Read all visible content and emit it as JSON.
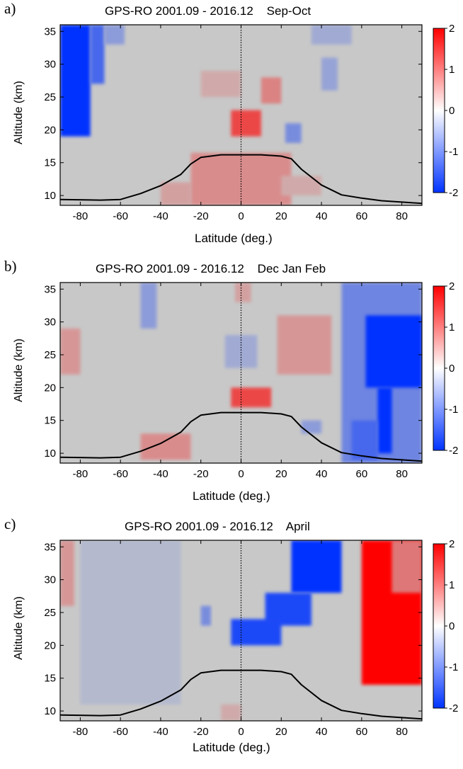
{
  "chart_data": [
    {
      "type": "heatmap",
      "panel_label": "a)",
      "title": "GPS-RO 2001.09 - 2016.12    Sep-Oct",
      "xlabel": "Latitude (deg.)",
      "ylabel": "Altitude (km)",
      "xlim": [
        -90,
        90
      ],
      "ylim": [
        8.5,
        36
      ],
      "xticks": [
        -80,
        -60,
        -40,
        -20,
        0,
        20,
        40,
        60,
        80
      ],
      "yticks": [
        10,
        15,
        20,
        25,
        30,
        35
      ],
      "colorbar": {
        "range": [
          -2,
          2
        ],
        "ticks": [
          2,
          1,
          0,
          -1,
          -2
        ],
        "low_color": "#0033ff",
        "mid_color": "#ffffff",
        "high_color": "#ff0000"
      },
      "background_value": 0,
      "anomalies": [
        {
          "lat": [
            -90,
            -75
          ],
          "alt": [
            19,
            36
          ],
          "value": -2
        },
        {
          "lat": [
            -75,
            -68
          ],
          "alt": [
            27,
            36
          ],
          "value": -1.3
        },
        {
          "lat": [
            -68,
            -58
          ],
          "alt": [
            33,
            36
          ],
          "value": -0.6
        },
        {
          "lat": [
            -40,
            -25
          ],
          "alt": [
            8.5,
            12
          ],
          "value": 0.4
        },
        {
          "lat": [
            -25,
            25
          ],
          "alt": [
            8.5,
            16.5
          ],
          "value": 0.6
        },
        {
          "lat": [
            -5,
            10
          ],
          "alt": [
            19,
            23
          ],
          "value": 1.3
        },
        {
          "lat": [
            10,
            20
          ],
          "alt": [
            24,
            28
          ],
          "value": 0.7
        },
        {
          "lat": [
            -20,
            0
          ],
          "alt": [
            25,
            29
          ],
          "value": 0.3
        },
        {
          "lat": [
            22,
            30
          ],
          "alt": [
            18,
            21
          ],
          "value": -0.8
        },
        {
          "lat": [
            40,
            48
          ],
          "alt": [
            26,
            31
          ],
          "value": -0.5
        },
        {
          "lat": [
            35,
            55
          ],
          "alt": [
            33,
            36
          ],
          "value": -0.4
        },
        {
          "lat": [
            20,
            40
          ],
          "alt": [
            10,
            13
          ],
          "value": 0.3
        }
      ],
      "tropopause": {
        "lat": [
          -90,
          -70,
          -60,
          -50,
          -40,
          -30,
          -25,
          -20,
          -10,
          0,
          10,
          20,
          25,
          30,
          40,
          50,
          60,
          70,
          80,
          90
        ],
        "alt": [
          9.4,
          9.3,
          9.4,
          10.3,
          11.5,
          13.2,
          14.8,
          15.8,
          16.2,
          16.2,
          16.2,
          16.0,
          15.6,
          14.0,
          11.6,
          10.1,
          9.6,
          9.2,
          9.0,
          8.8
        ]
      }
    },
    {
      "type": "heatmap",
      "panel_label": "b)",
      "title": "GPS-RO 2001.09 - 2016.12    Dec Jan Feb",
      "xlabel": "Latitude (deg.)",
      "ylabel": "Altitude (km)",
      "xlim": [
        -90,
        90
      ],
      "ylim": [
        8.5,
        36
      ],
      "xticks": [
        -80,
        -60,
        -40,
        -20,
        0,
        20,
        40,
        60,
        80
      ],
      "yticks": [
        10,
        15,
        20,
        25,
        30,
        35
      ],
      "colorbar": {
        "range": [
          -2,
          2
        ],
        "ticks": [
          2,
          1,
          0,
          -1,
          -2
        ],
        "low_color": "#0033ff",
        "mid_color": "#ffffff",
        "high_color": "#ff0000"
      },
      "background_value": 0,
      "anomalies": [
        {
          "lat": [
            -90,
            -80
          ],
          "alt": [
            22,
            29
          ],
          "value": 0.5
        },
        {
          "lat": [
            -50,
            -42
          ],
          "alt": [
            29,
            36
          ],
          "value": -0.6
        },
        {
          "lat": [
            -8,
            8
          ],
          "alt": [
            23,
            28
          ],
          "value": -0.4
        },
        {
          "lat": [
            -5,
            15
          ],
          "alt": [
            17,
            20
          ],
          "value": 1.3
        },
        {
          "lat": [
            -3,
            5
          ],
          "alt": [
            33,
            36
          ],
          "value": 0.4
        },
        {
          "lat": [
            18,
            45
          ],
          "alt": [
            22,
            31
          ],
          "value": 0.5
        },
        {
          "lat": [
            -50,
            -25
          ],
          "alt": [
            9,
            13
          ],
          "value": 0.6
        },
        {
          "lat": [
            30,
            40
          ],
          "alt": [
            13,
            15
          ],
          "value": -0.6
        },
        {
          "lat": [
            50,
            90
          ],
          "alt": [
            8.5,
            36
          ],
          "value": -0.9
        },
        {
          "lat": [
            62,
            90
          ],
          "alt": [
            20,
            31
          ],
          "value": -2
        },
        {
          "lat": [
            68,
            75
          ],
          "alt": [
            10,
            20
          ],
          "value": -2
        },
        {
          "lat": [
            55,
            68
          ],
          "alt": [
            9,
            15
          ],
          "value": -1.3
        }
      ],
      "tropopause": {
        "lat": [
          -90,
          -70,
          -60,
          -50,
          -40,
          -30,
          -25,
          -20,
          -10,
          0,
          10,
          20,
          25,
          30,
          40,
          50,
          60,
          70,
          80,
          90
        ],
        "alt": [
          9.4,
          9.3,
          9.4,
          10.3,
          11.5,
          13.2,
          14.8,
          15.8,
          16.2,
          16.2,
          16.2,
          16.0,
          15.6,
          14.0,
          11.6,
          10.1,
          9.6,
          9.2,
          9.0,
          8.8
        ]
      }
    },
    {
      "type": "heatmap",
      "panel_label": "c)",
      "title": "GPS-RO 2001.09 - 2016.12    April",
      "xlabel": "Latitude (deg.)",
      "ylabel": "Altitude (km)",
      "xlim": [
        -90,
        90
      ],
      "ylim": [
        8.5,
        36
      ],
      "xticks": [
        -80,
        -60,
        -40,
        -20,
        0,
        20,
        40,
        60,
        80
      ],
      "yticks": [
        10,
        15,
        20,
        25,
        30,
        35
      ],
      "colorbar": {
        "range": [
          -2,
          2
        ],
        "ticks": [
          2,
          1,
          0,
          -1,
          -2
        ],
        "low_color": "#0033ff",
        "mid_color": "#ffffff",
        "high_color": "#ff0000"
      },
      "background_value": 0,
      "anomalies": [
        {
          "lat": [
            -90,
            -83
          ],
          "alt": [
            26,
            36
          ],
          "value": 0.5
        },
        {
          "lat": [
            -80,
            -30
          ],
          "alt": [
            11,
            36
          ],
          "value": -0.2
        },
        {
          "lat": [
            25,
            50
          ],
          "alt": [
            28,
            36
          ],
          "value": -2
        },
        {
          "lat": [
            12,
            35
          ],
          "alt": [
            23,
            28
          ],
          "value": -1.7
        },
        {
          "lat": [
            -5,
            20
          ],
          "alt": [
            20,
            24
          ],
          "value": -1.7
        },
        {
          "lat": [
            -20,
            -15
          ],
          "alt": [
            23,
            26
          ],
          "value": -0.8
        },
        {
          "lat": [
            60,
            90
          ],
          "alt": [
            14,
            36
          ],
          "value": 2
        },
        {
          "lat": [
            75,
            90
          ],
          "alt": [
            28,
            36
          ],
          "value": 0.8
        },
        {
          "lat": [
            -10,
            0
          ],
          "alt": [
            8.5,
            11
          ],
          "value": 0.3
        }
      ],
      "tropopause": {
        "lat": [
          -90,
          -70,
          -60,
          -50,
          -40,
          -30,
          -25,
          -20,
          -10,
          0,
          10,
          20,
          25,
          30,
          40,
          50,
          60,
          70,
          80,
          90
        ],
        "alt": [
          9.4,
          9.3,
          9.4,
          10.3,
          11.5,
          13.2,
          14.8,
          15.8,
          16.2,
          16.2,
          16.2,
          16.0,
          15.6,
          14.0,
          11.6,
          10.1,
          9.6,
          9.2,
          9.0,
          8.8
        ]
      }
    }
  ],
  "colors": {
    "background": "#c8c8c8",
    "tropopause_line": "#000000",
    "equator_line": "#000000"
  }
}
